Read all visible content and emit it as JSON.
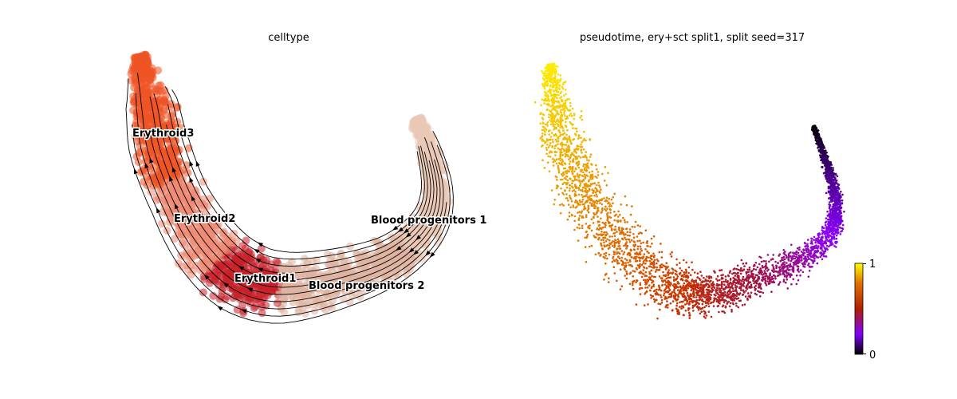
{
  "chart_data": [
    {
      "type": "scatter",
      "title": "celltype",
      "embedding": "UMAP with RNA velocity streamlines",
      "legend_placement": "on data",
      "clusters": [
        {
          "name": "Erythroid3",
          "color": "#ee5325"
        },
        {
          "name": "Erythroid2",
          "color": "#ef8a74"
        },
        {
          "name": "Erythroid1",
          "color": "#c7202a"
        },
        {
          "name": "Blood progenitors 2",
          "color": "#deb3a0"
        },
        {
          "name": "Blood progenitors 1",
          "color": "#e9c8b6"
        }
      ],
      "streamlines": true
    },
    {
      "type": "scatter",
      "title": "pseudotime, ery+sct split1, split seed=317",
      "colorbar": {
        "label_min": "0",
        "label_max": "1",
        "range": [
          0,
          1
        ],
        "colormap": "gnuplot"
      }
    }
  ]
}
